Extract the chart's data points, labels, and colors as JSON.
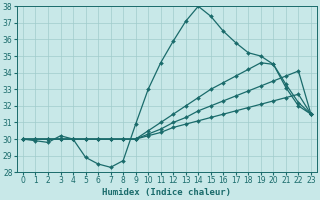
{
  "title": "",
  "xlabel": "Humidex (Indice chaleur)",
  "ylabel": "",
  "xlim": [
    -0.5,
    23.5
  ],
  "ylim": [
    28,
    38
  ],
  "yticks": [
    28,
    29,
    30,
    31,
    32,
    33,
    34,
    35,
    36,
    37,
    38
  ],
  "xticks": [
    0,
    1,
    2,
    3,
    4,
    5,
    6,
    7,
    8,
    9,
    10,
    11,
    12,
    13,
    14,
    15,
    16,
    17,
    18,
    19,
    20,
    21,
    22,
    23
  ],
  "background_color": "#c8e8e8",
  "grid_color": "#a0cccc",
  "line_color": "#1a6b6b",
  "series": {
    "line1": [
      30.0,
      29.9,
      29.8,
      30.2,
      30.0,
      28.9,
      28.5,
      28.3,
      28.7,
      30.9,
      33.0,
      34.6,
      35.9,
      37.1,
      38.0,
      37.4,
      36.5,
      35.8,
      35.2,
      35.0,
      34.5,
      33.1,
      32.0,
      31.5
    ],
    "line2": [
      30.0,
      30.0,
      30.0,
      30.0,
      30.0,
      30.0,
      30.0,
      30.0,
      30.0,
      30.0,
      30.3,
      30.6,
      31.0,
      31.3,
      31.7,
      32.0,
      32.3,
      32.6,
      32.9,
      33.2,
      33.5,
      33.8,
      34.1,
      31.5
    ],
    "line3": [
      30.0,
      30.0,
      30.0,
      30.0,
      30.0,
      30.0,
      30.0,
      30.0,
      30.0,
      30.0,
      30.5,
      31.0,
      31.5,
      32.0,
      32.5,
      33.0,
      33.4,
      33.8,
      34.2,
      34.6,
      34.5,
      33.3,
      32.2,
      31.5
    ],
    "line4": [
      30.0,
      30.0,
      30.0,
      30.0,
      30.0,
      30.0,
      30.0,
      30.0,
      30.0,
      30.0,
      30.2,
      30.4,
      30.7,
      30.9,
      31.1,
      31.3,
      31.5,
      31.7,
      31.9,
      32.1,
      32.3,
      32.5,
      32.7,
      31.5
    ]
  }
}
